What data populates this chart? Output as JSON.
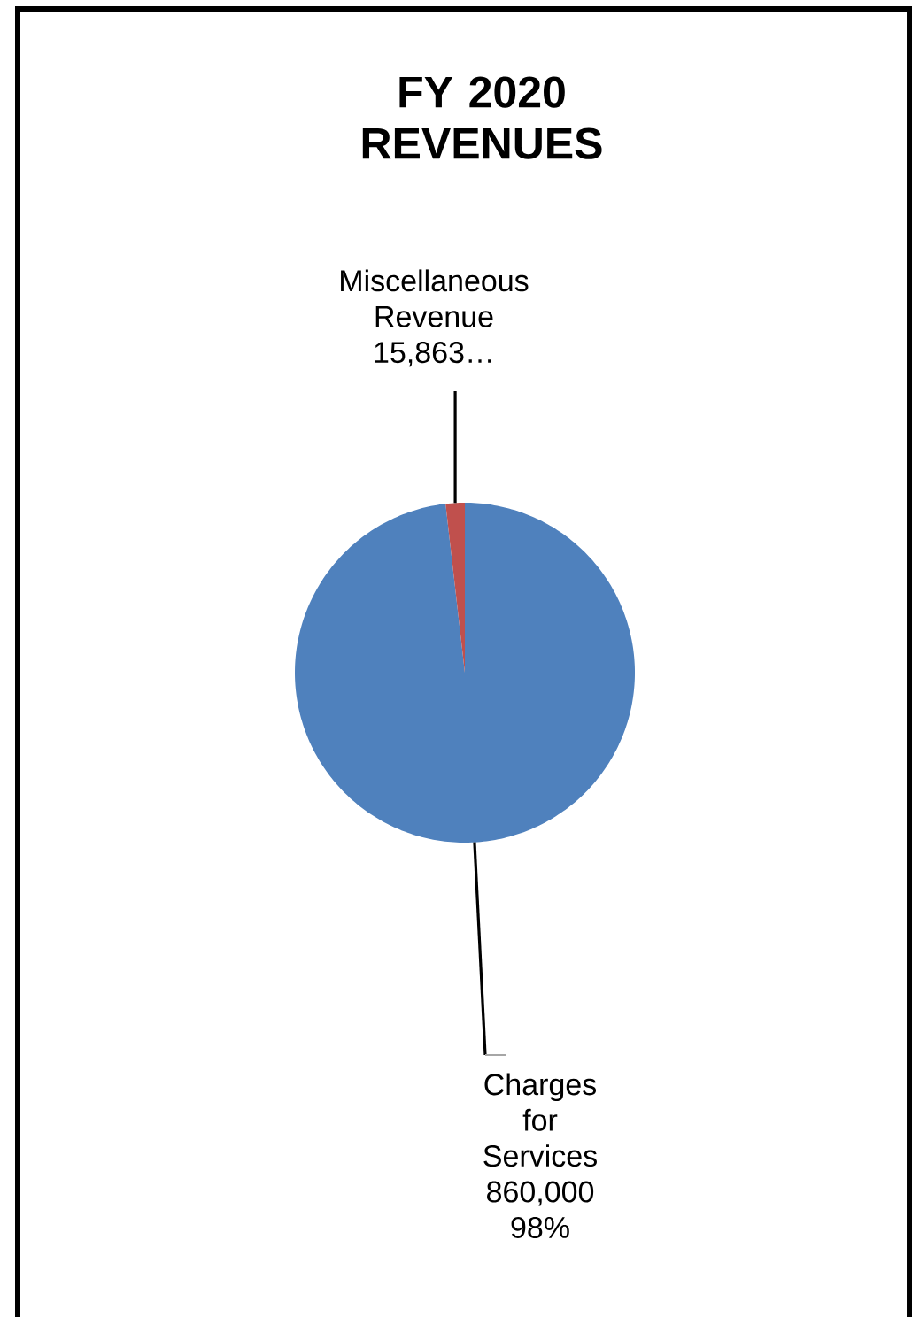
{
  "chart_data": {
    "type": "pie",
    "title": "FY 2020 REVENUES",
    "categories": [
      "Charges for Services",
      "Miscellaneous Revenue"
    ],
    "values": [
      860000,
      15863
    ],
    "colors": [
      "#4f81bd",
      "#c0504d"
    ],
    "value_labels": [
      "860,000 98%",
      "15,863…"
    ]
  }
}
